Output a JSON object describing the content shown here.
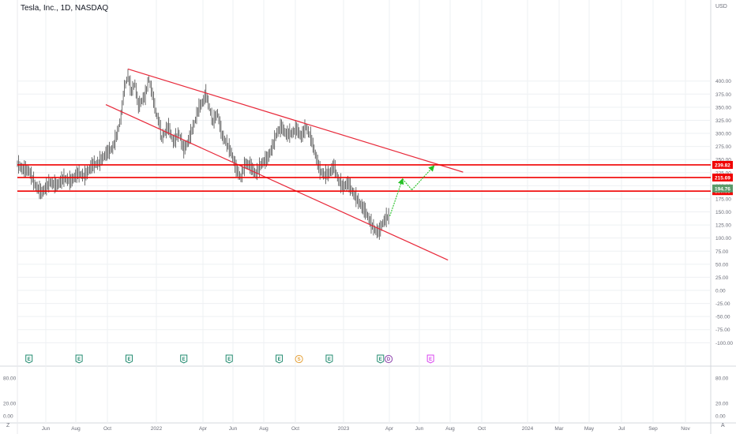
{
  "window": {
    "title": "Tesla, Inc., 1D, NASDAQ",
    "currency": "USD",
    "corner_left": "Z",
    "corner_right": "A"
  },
  "colors": {
    "line": "#e8293a",
    "hline": "#f00000",
    "arrow": "#25c025",
    "candle": "#4a4a4a",
    "grid": "#eef0f3",
    "axis_text": "#6a6d78",
    "current_price_bg": "#5a9a6a",
    "earnings_marker": "#1f8a6e",
    "split_marker": "#e6a23c",
    "dividend_marker": "#8e44ad",
    "upcoming_marker": "#d946ef"
  },
  "chart_data": {
    "type": "line",
    "title": "Tesla, Inc., 1D, NASDAQ",
    "x_ticks": [
      "Jun",
      "Aug",
      "Oct",
      "2022",
      "Apr",
      "Jun",
      "Aug",
      "Oct",
      "2023",
      "Apr",
      "Jun",
      "Aug",
      "Oct",
      "2024",
      "Mar",
      "May",
      "Jul",
      "Sep",
      "Nov"
    ],
    "ylim": [
      -100,
      425
    ],
    "y_ticks": [
      "400.00",
      "375.00",
      "350.00",
      "325.00",
      "300.00",
      "275.00",
      "250.00",
      "225.00",
      "200.00",
      "175.00",
      "150.00",
      "125.00",
      "100.00",
      "75.00",
      "50.00",
      "25.00",
      "0.00",
      "-25.00",
      "-50.00",
      "-75.00",
      "-100.00"
    ],
    "price_lines": [
      {
        "value": 239.82,
        "label": "239.82"
      },
      {
        "value": 215.69,
        "label": "215.69"
      },
      {
        "value": 189.65,
        "label": "189.65"
      }
    ],
    "current_price": {
      "value": 194.76,
      "label": "194.76"
    },
    "price_series": [
      [
        0,
        242
      ],
      [
        4,
        232
      ],
      [
        10,
        228
      ],
      [
        16,
        198
      ],
      [
        21,
        186
      ],
      [
        28,
        206
      ],
      [
        34,
        200
      ],
      [
        40,
        214
      ],
      [
        46,
        208
      ],
      [
        52,
        223
      ],
      [
        58,
        218
      ],
      [
        64,
        238
      ],
      [
        70,
        243
      ],
      [
        76,
        260
      ],
      [
        82,
        272
      ],
      [
        86,
        300
      ],
      [
        89,
        330
      ],
      [
        92,
        385
      ],
      [
        95,
        410
      ],
      [
        98,
        380
      ],
      [
        101,
        395
      ],
      [
        104,
        352
      ],
      [
        107,
        362
      ],
      [
        110,
        372
      ],
      [
        113,
        403
      ],
      [
        116,
        375
      ],
      [
        119,
        340
      ],
      [
        122,
        320
      ],
      [
        124,
        290
      ],
      [
        127,
        302
      ],
      [
        130,
        312
      ],
      [
        134,
        283
      ],
      [
        139,
        300
      ],
      [
        143,
        268
      ],
      [
        147,
        285
      ],
      [
        152,
        318
      ],
      [
        156,
        348
      ],
      [
        160,
        362
      ],
      [
        162,
        375
      ],
      [
        165,
        350
      ],
      [
        168,
        322
      ],
      [
        172,
        338
      ],
      [
        176,
        295
      ],
      [
        180,
        280
      ],
      [
        184,
        262
      ],
      [
        188,
        232
      ],
      [
        192,
        215
      ],
      [
        196,
        242
      ],
      [
        200,
        238
      ],
      [
        205,
        222
      ],
      [
        210,
        242
      ],
      [
        215,
        252
      ],
      [
        219,
        272
      ],
      [
        223,
        300
      ],
      [
        227,
        312
      ],
      [
        231,
        298
      ],
      [
        236,
        300
      ],
      [
        240,
        308
      ],
      [
        244,
        293
      ],
      [
        248,
        312
      ],
      [
        252,
        293
      ],
      [
        256,
        260
      ],
      [
        260,
        228
      ],
      [
        264,
        220
      ],
      [
        268,
        223
      ],
      [
        272,
        237
      ],
      [
        276,
        210
      ],
      [
        280,
        197
      ],
      [
        284,
        205
      ],
      [
        288,
        188
      ],
      [
        292,
        173
      ],
      [
        296,
        160
      ],
      [
        300,
        147
      ],
      [
        304,
        126
      ],
      [
        308,
        113
      ],
      [
        311,
        112
      ],
      [
        314,
        128
      ],
      [
        317,
        138
      ],
      [
        320,
        142
      ]
    ],
    "trend_lines": [
      {
        "name": "upper",
        "points": [
          [
            95,
            423
          ],
          [
            383,
            226
          ]
        ]
      },
      {
        "name": "lower",
        "points": [
          [
            76,
            355
          ],
          [
            370,
            58
          ]
        ]
      }
    ],
    "projection_arrows": [
      {
        "from": [
          320,
          142
        ],
        "to": [
          331,
          213
        ]
      },
      {
        "from": [
          331,
          213
        ],
        "to": [
          339,
          192
        ]
      },
      {
        "from": [
          339,
          192
        ],
        "to": [
          358,
          238
        ]
      }
    ],
    "event_markers": [
      {
        "label": "E",
        "kind": "earnings",
        "x": 10
      },
      {
        "label": "E",
        "kind": "earnings",
        "x": 53
      },
      {
        "label": "E",
        "kind": "earnings",
        "x": 96
      },
      {
        "label": "E",
        "kind": "earnings",
        "x": 143
      },
      {
        "label": "E",
        "kind": "earnings",
        "x": 182
      },
      {
        "label": "E",
        "kind": "earnings",
        "x": 225
      },
      {
        "label": "S",
        "kind": "split",
        "x": 242
      },
      {
        "label": "E",
        "kind": "earnings",
        "x": 268
      },
      {
        "label": "E",
        "kind": "earnings",
        "x": 312
      },
      {
        "label": "D",
        "kind": "dividend",
        "x": 319
      },
      {
        "label": "E",
        "kind": "upcoming",
        "x": 355
      }
    ],
    "indicator_pane": {
      "y_ticks": [
        "80.00",
        "20.00",
        "0.00"
      ]
    }
  }
}
